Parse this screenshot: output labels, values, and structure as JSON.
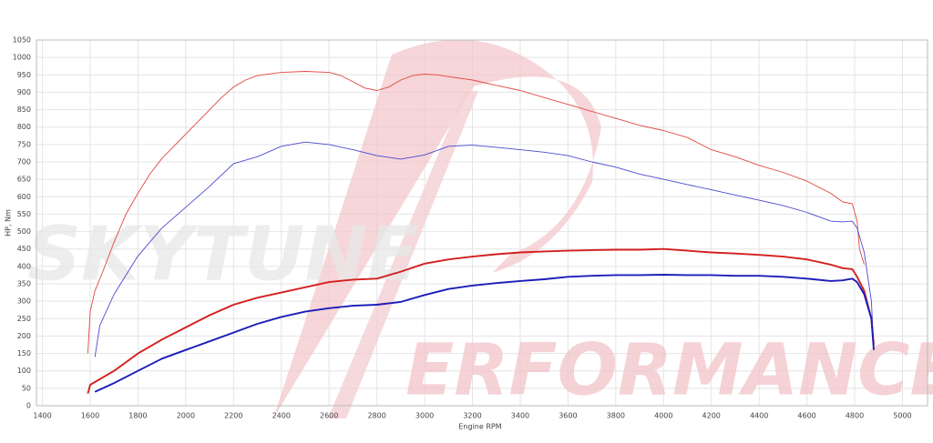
{
  "chart_data": {
    "type": "line",
    "x_label": "Engine RPM",
    "y_label": "HP, Nm",
    "watermark": {
      "brand": "SKYTUNE",
      "tagline": "ERFORMANCE"
    },
    "xlim": [
      1375,
      5105
    ],
    "ylim": [
      0,
      1050
    ],
    "xticks": [
      1400,
      1600,
      1800,
      2000,
      2200,
      2400,
      2600,
      2800,
      3000,
      3200,
      3400,
      3600,
      3800,
      4000,
      4200,
      4400,
      4600,
      4800,
      5000
    ],
    "yticks": [
      0,
      50,
      100,
      150,
      200,
      250,
      300,
      350,
      400,
      450,
      500,
      550,
      600,
      650,
      700,
      750,
      800,
      850,
      900,
      950,
      1000,
      1050
    ],
    "grid": true,
    "series": [
      {
        "color": "#e0473f",
        "x": [
          1590,
          1600,
          1620,
          1650,
          1700,
          1750,
          1800,
          1850,
          1900,
          2000,
          2100,
          2150,
          2200,
          2250,
          2300,
          2400,
          2500,
          2600,
          2650,
          2700,
          2750,
          2800,
          2850,
          2900,
          2950,
          3000,
          3050,
          3100,
          3200,
          3300,
          3400,
          3500,
          3600,
          3700,
          3800,
          3900,
          4000,
          4100,
          4200,
          4300,
          4400,
          4500,
          4600,
          4700,
          4750,
          4790,
          4810,
          4820,
          4840
        ],
        "values": [
          150,
          270,
          330,
          380,
          470,
          550,
          610,
          665,
          710,
          780,
          850,
          885,
          915,
          935,
          948,
          957,
          960,
          957,
          948,
          930,
          912,
          905,
          915,
          935,
          948,
          952,
          950,
          945,
          935,
          920,
          905,
          885,
          865,
          845,
          825,
          805,
          790,
          770,
          735,
          715,
          690,
          670,
          645,
          610,
          585,
          580,
          530,
          450,
          405
        ]
      },
      {
        "color": "#4a4ad0",
        "x": [
          1620,
          1640,
          1700,
          1800,
          1900,
          2000,
          2100,
          2200,
          2300,
          2400,
          2500,
          2600,
          2700,
          2800,
          2900,
          3000,
          3100,
          3200,
          3300,
          3400,
          3500,
          3600,
          3700,
          3800,
          3900,
          4000,
          4100,
          4200,
          4300,
          4400,
          4500,
          4600,
          4700,
          4750,
          4790,
          4810,
          4840,
          4870,
          4880
        ],
        "values": [
          140,
          230,
          320,
          430,
          510,
          570,
          630,
          695,
          715,
          745,
          757,
          750,
          735,
          718,
          708,
          720,
          745,
          748,
          742,
          735,
          728,
          718,
          700,
          685,
          665,
          650,
          635,
          620,
          605,
          590,
          575,
          555,
          530,
          528,
          530,
          510,
          440,
          300,
          160
        ]
      },
      {
        "color": "#d41f1f",
        "x": [
          1590,
          1600,
          1700,
          1800,
          1900,
          2000,
          2100,
          2200,
          2300,
          2400,
          2500,
          2600,
          2700,
          2800,
          2900,
          3000,
          3100,
          3200,
          3300,
          3400,
          3500,
          3600,
          3700,
          3800,
          3900,
          4000,
          4100,
          4200,
          4300,
          4400,
          4500,
          4600,
          4700,
          4750,
          4790,
          4810,
          4840,
          4870,
          4880
        ],
        "values": [
          35,
          60,
          100,
          150,
          190,
          225,
          260,
          290,
          310,
          325,
          340,
          355,
          362,
          365,
          385,
          408,
          420,
          428,
          435,
          440,
          443,
          445,
          447,
          448,
          448,
          450,
          445,
          440,
          437,
          433,
          428,
          420,
          405,
          395,
          392,
          370,
          330,
          250,
          175
        ]
      },
      {
        "color": "#1c1cb8",
        "x": [
          1620,
          1700,
          1800,
          1900,
          2000,
          2100,
          2200,
          2300,
          2400,
          2500,
          2600,
          2700,
          2800,
          2900,
          3000,
          3100,
          3200,
          3300,
          3400,
          3500,
          3600,
          3700,
          3800,
          3900,
          4000,
          4100,
          4200,
          4300,
          4400,
          4500,
          4600,
          4700,
          4750,
          4790,
          4810,
          4840,
          4870,
          4880
        ],
        "values": [
          40,
          65,
          100,
          135,
          160,
          185,
          210,
          235,
          255,
          270,
          280,
          287,
          290,
          298,
          318,
          335,
          345,
          352,
          358,
          363,
          370,
          373,
          375,
          375,
          376,
          375,
          375,
          373,
          373,
          370,
          365,
          358,
          360,
          365,
          355,
          320,
          250,
          160
        ]
      }
    ]
  }
}
